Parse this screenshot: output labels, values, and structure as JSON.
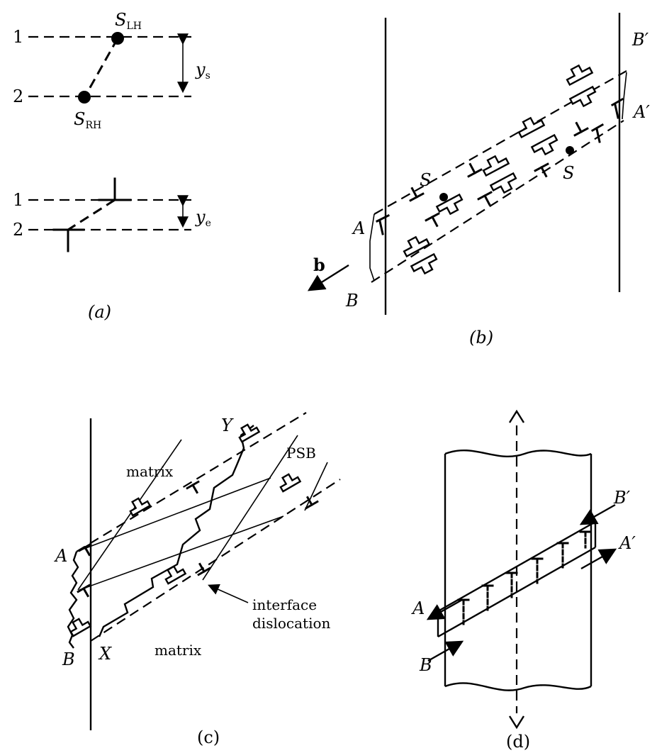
{
  "panel_a": {
    "caption": "(a)",
    "plane_1": "1",
    "plane_2": "2",
    "s_lh_main": "S",
    "s_lh_sub": "LH",
    "s_rh_main": "S",
    "s_rh_sub": "RH",
    "ys_main": "y",
    "ys_sub": "s",
    "ye_main": "y",
    "ye_sub": "e"
  },
  "panel_b": {
    "caption": "(b)",
    "label_A": "A",
    "label_B": "B",
    "label_A_prime": "A′",
    "label_B_prime": "B′",
    "label_S1": "S",
    "label_S2": "S",
    "burgers_vector": "b"
  },
  "panel_c": {
    "caption": "(c)",
    "label_A": "A",
    "label_B": "B",
    "label_X": "X",
    "label_Y": "Y",
    "matrix_top": "matrix",
    "matrix_bottom": "matrix",
    "psb": "PSB",
    "interface_line1": "interface",
    "interface_line2": "dislocation"
  },
  "panel_d": {
    "caption": "(d)",
    "label_A": "A",
    "label_B": "B",
    "label_A_prime": "A′",
    "label_B_prime": "B′"
  }
}
